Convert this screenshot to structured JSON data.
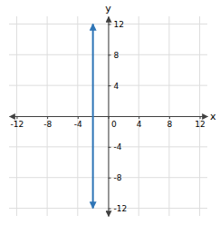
{
  "chart_data": {
    "type": "line",
    "x": [
      -2,
      -2
    ],
    "values": [
      -12,
      12
    ],
    "color": "#2e75b6",
    "marker": "arrow",
    "x_label": "x",
    "y_label": "y",
    "xlim": [
      -13,
      13
    ],
    "ylim": [
      -13,
      13
    ],
    "xticks": [
      -12,
      -8,
      -4,
      0,
      4,
      8,
      12
    ],
    "yticks": [
      -12,
      -8,
      -4,
      4,
      8,
      12
    ],
    "grid": true
  }
}
